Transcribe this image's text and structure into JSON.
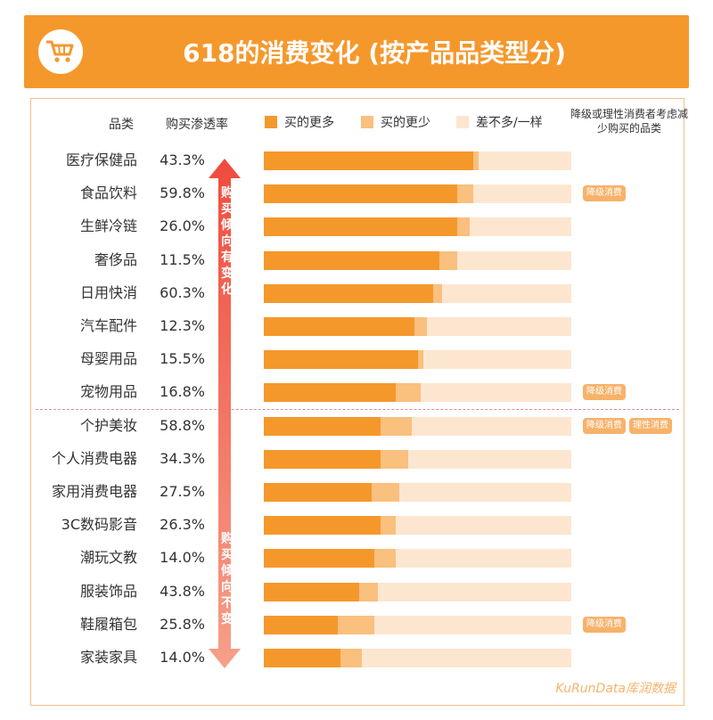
{
  "title": "618的消费变化 (按产品品类型分)",
  "headers": {
    "category": "品类",
    "rate": "购买渗透率",
    "side": "降级或理性消费者考虑减少购买的品类"
  },
  "legend": [
    {
      "label": "买的更多",
      "color": "#f5982c"
    },
    {
      "label": "买的更少",
      "color": "#f9c07e"
    },
    {
      "label": "差不多/一样",
      "color": "#fde6d0"
    }
  ],
  "arrow_texts": {
    "top": [
      "购",
      "买",
      "倾",
      "向",
      "有",
      "变",
      "化"
    ],
    "bottom": [
      "购",
      "买",
      "倾",
      "向",
      "不",
      "变"
    ]
  },
  "watermark": "KuRunData库润数据",
  "tags": [
    {
      "row": 1,
      "labels": [
        "降级消费"
      ]
    },
    {
      "row": 7,
      "labels": [
        "降级消费"
      ]
    },
    {
      "row": 8,
      "labels": [
        "降级消费",
        "理性消费"
      ]
    },
    {
      "row": 14,
      "labels": [
        "降级消费"
      ]
    }
  ],
  "chart_data": {
    "type": "bar",
    "orientation": "horizontal",
    "stacked": true,
    "xlim": [
      0,
      100
    ],
    "categories": [
      "医疗保健品",
      "食品饮料",
      "生鲜冷链",
      "奢侈品",
      "日用快消",
      "汽车配件",
      "母婴用品",
      "宠物用品",
      "个护美妆",
      "个人消费电器",
      "家用消费电器",
      "3C数码影音",
      "潮玩文教",
      "服装饰品",
      "鞋履箱包",
      "家装家具"
    ],
    "penetration_rate": [
      "43.3%",
      "59.8%",
      "26.0%",
      "11.5%",
      "60.3%",
      "12.3%",
      "15.5%",
      "16.8%",
      "58.8%",
      "34.3%",
      "27.5%",
      "26.3%",
      "14.0%",
      "43.8%",
      "25.8%",
      "14.0%"
    ],
    "series": [
      {
        "name": "买的更多",
        "color": "#f5982c",
        "values": [
          68,
          63,
          63,
          57,
          55,
          49,
          50,
          43,
          38,
          38,
          35,
          38,
          36,
          31,
          24,
          25
        ]
      },
      {
        "name": "买的更少",
        "color": "#f9c07e",
        "values": [
          2,
          5,
          4,
          6,
          3,
          4,
          2,
          8,
          10,
          9,
          9,
          5,
          7,
          6,
          12,
          7
        ]
      },
      {
        "name": "差不多/一样",
        "color": "#fde6d0",
        "values": [
          30,
          32,
          33,
          37,
          42,
          47,
          48,
          49,
          52,
          53,
          56,
          57,
          57,
          63,
          64,
          68
        ]
      }
    ]
  }
}
